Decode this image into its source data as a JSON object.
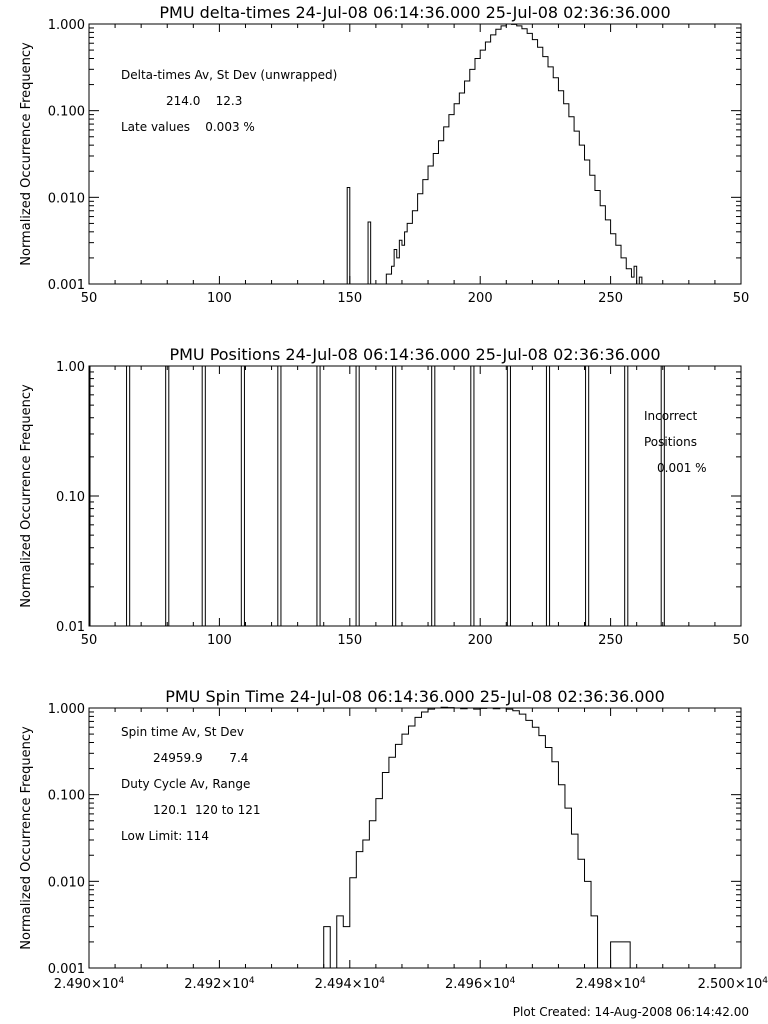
{
  "chart_data": [
    {
      "type": "line",
      "title": "PMU delta-times 24-Jul-08 06:14:36.000 25-Jul-08 02:36:36.000",
      "ylabel": "Normalized Occurrence Frequency",
      "y_scale": "log",
      "xlim": [
        50,
        300
      ],
      "ylim": [
        0.001,
        1.0
      ],
      "x_ticks": [
        "50",
        "100",
        "150",
        "200",
        "250",
        "50"
      ],
      "y_ticks": [
        "0.001",
        "0.010",
        "0.100",
        "1.000"
      ],
      "annotations": [
        "Delta-times Av, St Dev (unwrapped)",
        "214.0    12.3",
        "Late values    0.003 %"
      ],
      "series": [
        {
          "style": "step",
          "x": [
            149,
            150,
            157,
            158,
            161,
            164,
            166,
            167,
            168,
            169,
            170,
            171,
            172,
            174,
            176,
            178,
            180,
            182,
            184,
            186,
            188,
            190,
            192,
            194,
            196,
            198,
            200,
            202,
            204,
            206,
            208,
            210,
            212,
            214,
            216,
            218,
            220,
            222,
            224,
            226,
            228,
            230,
            232,
            234,
            236,
            238,
            240,
            242,
            244,
            246,
            248,
            250,
            252,
            254,
            256,
            258,
            259,
            260,
            261,
            262
          ],
          "y": [
            0.013,
            0,
            0.0052,
            0,
            0.001,
            0.0013,
            0.0016,
            0.0025,
            0.002,
            0.0032,
            0.0028,
            0.004,
            0.005,
            0.007,
            0.011,
            0.016,
            0.023,
            0.032,
            0.045,
            0.065,
            0.09,
            0.12,
            0.16,
            0.22,
            0.3,
            0.4,
            0.5,
            0.62,
            0.75,
            0.87,
            0.95,
            1.0,
            0.99,
            0.95,
            0.88,
            0.78,
            0.66,
            0.54,
            0.42,
            0.32,
            0.24,
            0.17,
            0.12,
            0.085,
            0.058,
            0.04,
            0.027,
            0.018,
            0.012,
            0.008,
            0.0055,
            0.0038,
            0.0028,
            0.002,
            0.0015,
            0.0012,
            0.0016,
            0.001,
            0.0012,
            0
          ]
        }
      ]
    },
    {
      "type": "bar",
      "title": "PMU Positions 24-Jul-08 06:14:36.000 25-Jul-08 02:36:36.000",
      "ylabel": "Normalized Occurrence Frequency",
      "y_scale": "log",
      "xlim": [
        50,
        300
      ],
      "ylim": [
        0.01,
        1.0
      ],
      "x_ticks": [
        "50",
        "100",
        "150",
        "200",
        "250",
        "50"
      ],
      "y_ticks": [
        "0.01",
        "0.10",
        "1.00"
      ],
      "annotations": [
        "Incorrect",
        "Positions",
        "0.001 %"
      ],
      "x": [
        65,
        80,
        94,
        109,
        123,
        138,
        153,
        167,
        182,
        197,
        211,
        226,
        241,
        256,
        270
      ],
      "values": [
        1.0,
        1.0,
        1.0,
        1.0,
        1.0,
        1.0,
        1.0,
        1.0,
        1.0,
        1.0,
        1.0,
        1.0,
        1.0,
        1.0,
        1.0
      ]
    },
    {
      "type": "line",
      "title": "PMU Spin Time 24-Jul-08 06:14:36.000 25-Jul-08 02:36:36.000",
      "ylabel": "Normalized Occurrence Frequency",
      "y_scale": "log",
      "xlim": [
        24900,
        25000
      ],
      "ylim": [
        0.001,
        1.0
      ],
      "x_ticks": [
        {
          "mant": "2.490",
          "exp": "4"
        },
        {
          "mant": "2.492",
          "exp": "4"
        },
        {
          "mant": "2.494",
          "exp": "4"
        },
        {
          "mant": "2.496",
          "exp": "4"
        },
        {
          "mant": "2.498",
          "exp": "4"
        },
        {
          "mant": "2.500",
          "exp": "4"
        }
      ],
      "x_tick_mult": "×10",
      "y_ticks": [
        "0.001",
        "0.010",
        "0.100",
        "1.000"
      ],
      "annotations": [
        "Spin time Av, St Dev",
        "24959.9       7.4",
        "Duty Cycle Av, Range",
        "120.1  120 to 121",
        "Low Limit: 114"
      ],
      "series": [
        {
          "style": "step",
          "x": [
            24936,
            24937,
            24938,
            24939,
            24940,
            24941,
            24942,
            24943,
            24944,
            24945,
            24946,
            24947,
            24948,
            24949,
            24950,
            24951,
            24952,
            24953,
            24954,
            24955,
            24956,
            24957,
            24958,
            24959,
            24960,
            24961,
            24962,
            24963,
            24964,
            24965,
            24966,
            24967,
            24968,
            24969,
            24970,
            24971,
            24972,
            24973,
            24974,
            24975,
            24976,
            24977,
            24978,
            24979,
            24980,
            24981,
            24982,
            24983
          ],
          "y": [
            0.003,
            0,
            0.004,
            0.003,
            0.011,
            0.022,
            0.03,
            0.05,
            0.09,
            0.18,
            0.27,
            0.38,
            0.5,
            0.62,
            0.78,
            0.9,
            0.97,
            1.0,
            1.02,
            1.01,
            1.0,
            0.98,
            1.0,
            0.97,
            0.99,
            1.0,
            0.98,
            1.0,
            0.97,
            0.93,
            0.85,
            0.72,
            0.6,
            0.48,
            0.35,
            0.24,
            0.13,
            0.07,
            0.035,
            0.018,
            0.01,
            0.004,
            0,
            0,
            0.002,
            0.002,
            0.002,
            0
          ]
        }
      ]
    }
  ],
  "footer": "Plot Created: 14-Aug-2008 06:14:42.00"
}
